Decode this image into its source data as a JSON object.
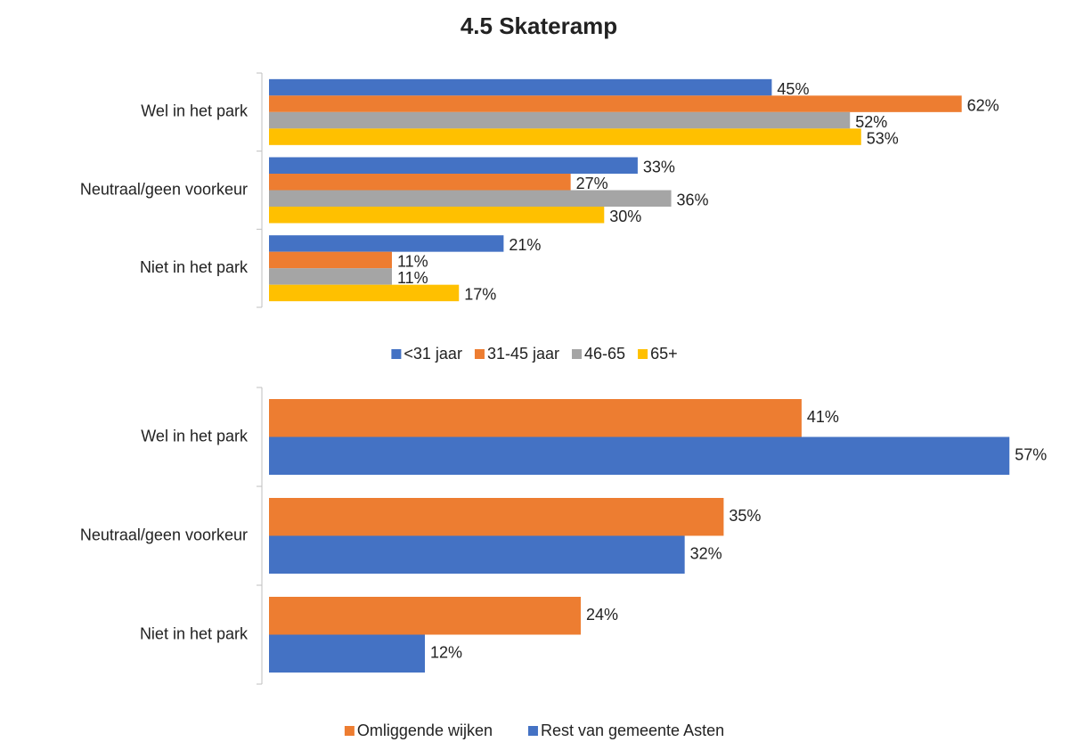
{
  "chart_data": [
    {
      "type": "bar",
      "title": "4.5 Skateramp",
      "categories": [
        "Wel in het park",
        "Neutraal/geen voorkeur",
        "Niet in het park"
      ],
      "xlim": [
        0,
        70
      ],
      "series": [
        {
          "name": "<31 jaar",
          "color": "#4472c4",
          "values": [
            45,
            33,
            21
          ],
          "value_labels": [
            "45%",
            "33%",
            "21%"
          ]
        },
        {
          "name": "31-45 jaar",
          "color": "#ed7d31",
          "values": [
            62,
            27,
            11
          ],
          "value_labels": [
            "62%",
            "27%",
            "11%"
          ]
        },
        {
          "name": "46-65",
          "color": "#a5a5a5",
          "values": [
            52,
            36,
            11
          ],
          "value_labels": [
            "52%",
            "36%",
            "11%"
          ]
        },
        {
          "name": "65+",
          "color": "#ffc000",
          "values": [
            53,
            30,
            17
          ],
          "value_labels": [
            "53%",
            "30%",
            "17%"
          ]
        }
      ]
    },
    {
      "type": "bar",
      "categories": [
        "Wel in het park",
        "Neutraal/geen voorkeur",
        "Niet in het park"
      ],
      "xlim": [
        0,
        60
      ],
      "series": [
        {
          "name": "Omliggende wijken",
          "color": "#ed7d31",
          "values": [
            41,
            35,
            24
          ],
          "value_labels": [
            "41%",
            "35%",
            "24%"
          ]
        },
        {
          "name": "Rest van gemeente Asten",
          "color": "#4472c4",
          "values": [
            57,
            32,
            12
          ],
          "value_labels": [
            "57%",
            "32%",
            "12%"
          ]
        }
      ]
    }
  ]
}
